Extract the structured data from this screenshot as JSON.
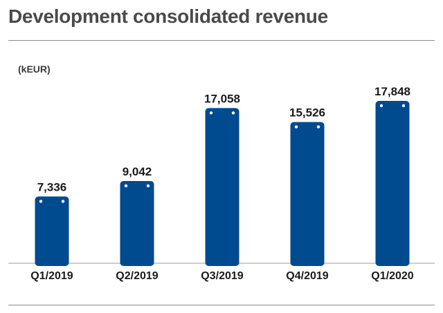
{
  "title": "Development consolidated revenue",
  "unit": "(kEUR)",
  "colors": {
    "bar": "#004a8f",
    "dot": "#ffffff",
    "axis": "#999999"
  },
  "chart_data": {
    "type": "bar",
    "categories": [
      "Q1/2019",
      "Q2/2019",
      "Q3/2019",
      "Q4/2019",
      "Q1/2020"
    ],
    "values": [
      7336,
      9042,
      17058,
      15526,
      17848
    ],
    "value_labels": [
      "7,336",
      "9,042",
      "17,058",
      "15,526",
      "17,848"
    ],
    "ylabel": "(kEUR)",
    "ylim": [
      0,
      18000
    ],
    "grid": false,
    "legend": "none"
  }
}
